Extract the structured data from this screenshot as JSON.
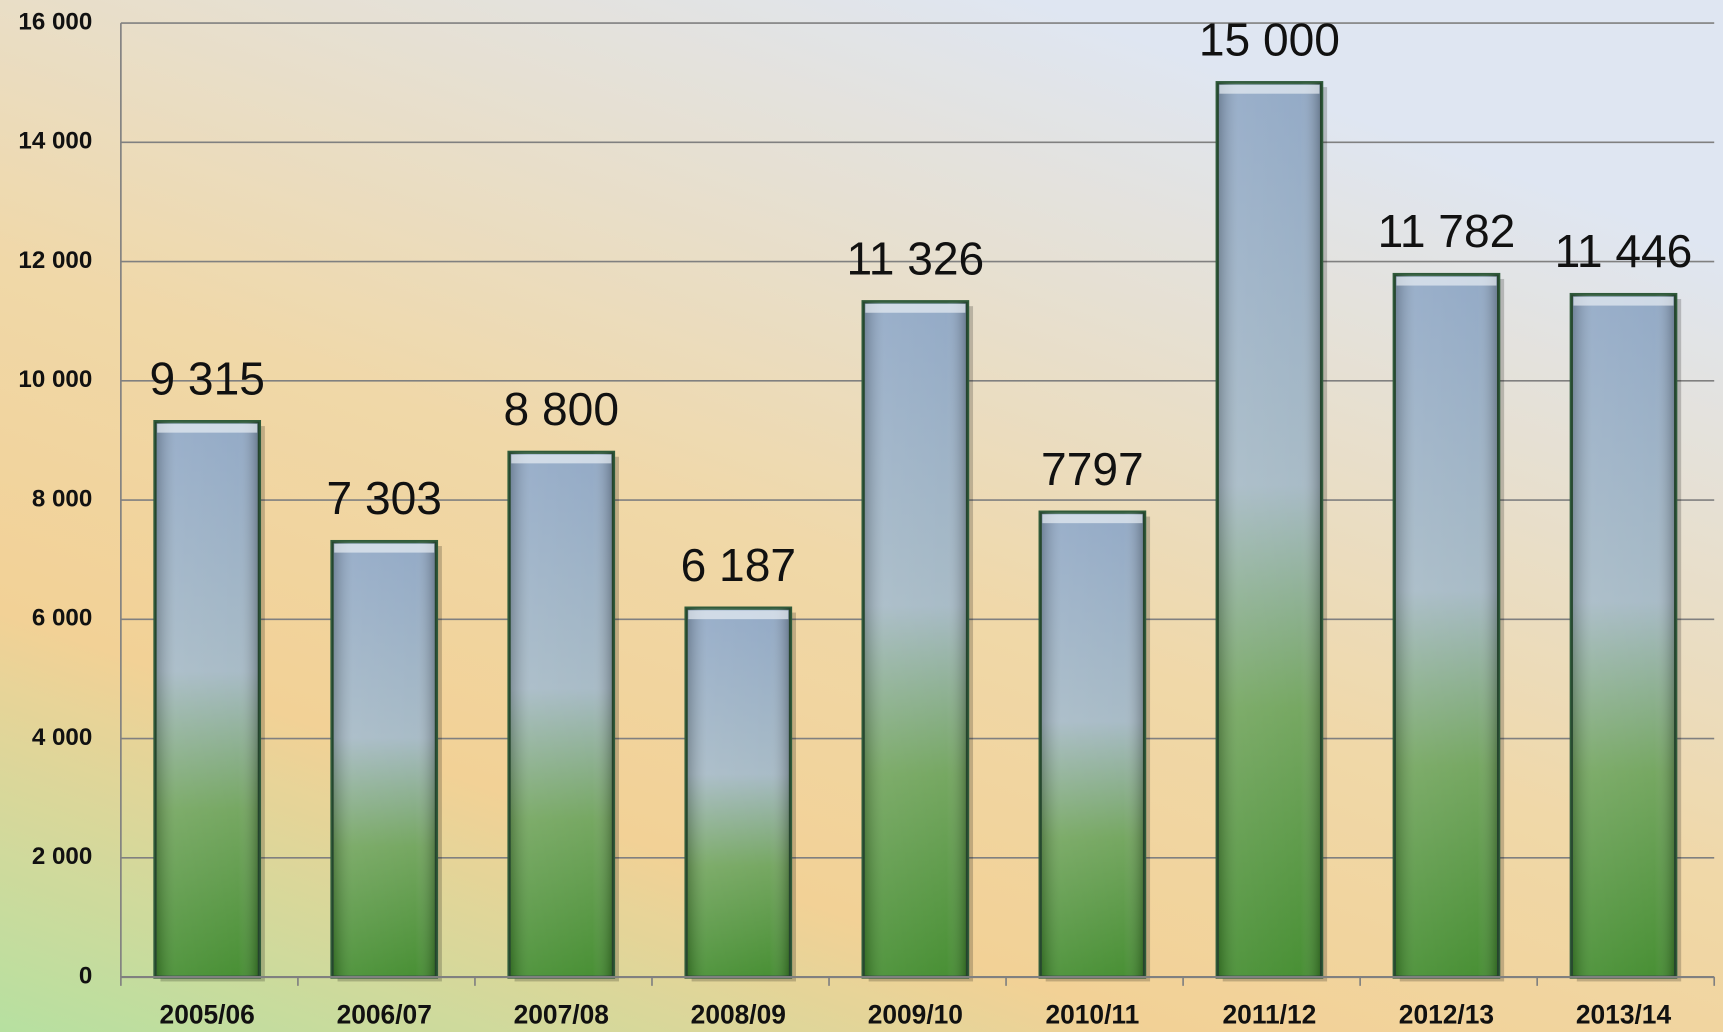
{
  "chart_data": {
    "type": "bar",
    "categories": [
      "2005/06",
      "2006/07",
      "2007/08",
      "2008/09",
      "2009/10",
      "2010/11",
      "2011/12",
      "2012/13",
      "2013/14"
    ],
    "values": [
      9315,
      7303,
      8800,
      6187,
      11326,
      7797,
      15000,
      11782,
      11446
    ],
    "value_labels": [
      "9 315",
      "7 303",
      "8 800",
      "6 187",
      "11 326",
      "7797",
      "15 000",
      "11 782",
      "11 446"
    ],
    "color": "#7f9bb5",
    "ylim": [
      0,
      16000
    ],
    "yticks": [
      0,
      {
        "value": 2000,
        "label": "2 000"
      },
      {
        "value": 4000,
        "label": "4 000"
      },
      {
        "value": 6000,
        "label": "6 000"
      },
      {
        "value": 8000,
        "label": "8 000"
      },
      {
        "value": 10000,
        "label": "10 000"
      },
      {
        "value": 12000,
        "label": "12 000"
      },
      {
        "value": 14000,
        "label": "14 000"
      },
      {
        "value": 16000,
        "label": "16 000"
      }
    ],
    "grid": true
  }
}
